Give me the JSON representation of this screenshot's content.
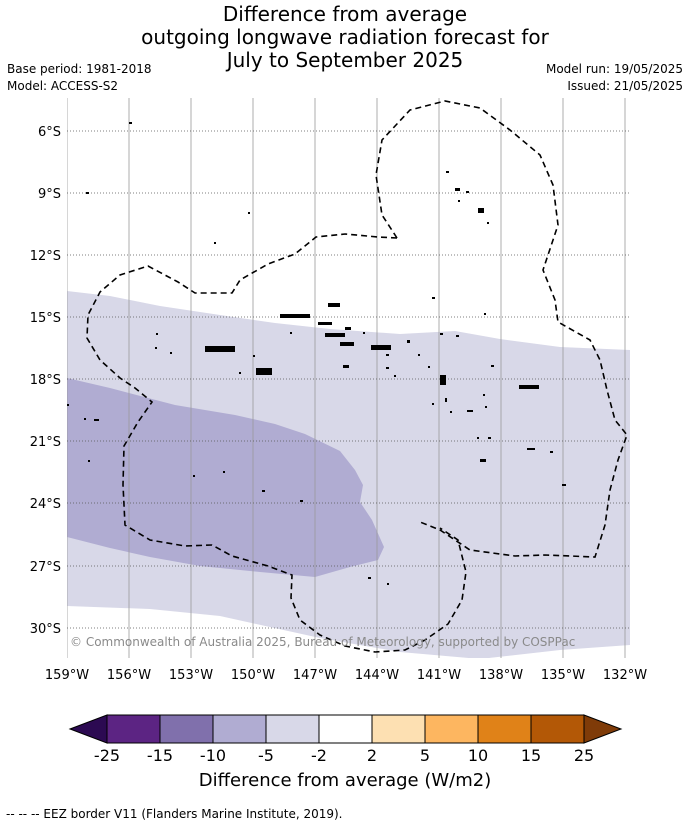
{
  "title": {
    "line1": "Difference from average",
    "line2": "outgoing longwave radiation forecast for",
    "line3": "July to September 2025"
  },
  "info": {
    "base_period": "Base period: 1981-2018",
    "model": "Model: ACCESS-S2",
    "model_run": "Model run: 19/05/2025",
    "issued": "Issued: 21/05/2025"
  },
  "map": {
    "lat_labels": [
      "6°S",
      "9°S",
      "12°S",
      "15°S",
      "18°S",
      "21°S",
      "24°S",
      "27°S",
      "30°S"
    ],
    "lon_labels": [
      "159°W",
      "156°W",
      "153°W",
      "150°W",
      "147°W",
      "144°W",
      "141°W",
      "138°W",
      "135°W",
      "132°W"
    ],
    "copyright": "© Commonwealth of Australia 2025, Bureau of Meteorology, supported by COSPPac",
    "fill_colors": {
      "light": "#d8d8e8",
      "medium": "#b0acd2"
    }
  },
  "colorbar": {
    "tick_labels": [
      "-25",
      "-15",
      "-10",
      "-5",
      "-2",
      "2",
      "5",
      "10",
      "15",
      "25"
    ],
    "colors": [
      "#2c0a52",
      "#5c2483",
      "#8070ac",
      "#b0acd2",
      "#d8d8e8",
      "#ffffff",
      "#fde0b2",
      "#fdb660",
      "#e08218",
      "#b35806",
      "#7f3b08"
    ],
    "label": "Difference from average (W/m2)"
  },
  "footer": {
    "eez_legend": "--  --  -- EEZ border V11 (Flanders Marine Institute, 2019)."
  }
}
